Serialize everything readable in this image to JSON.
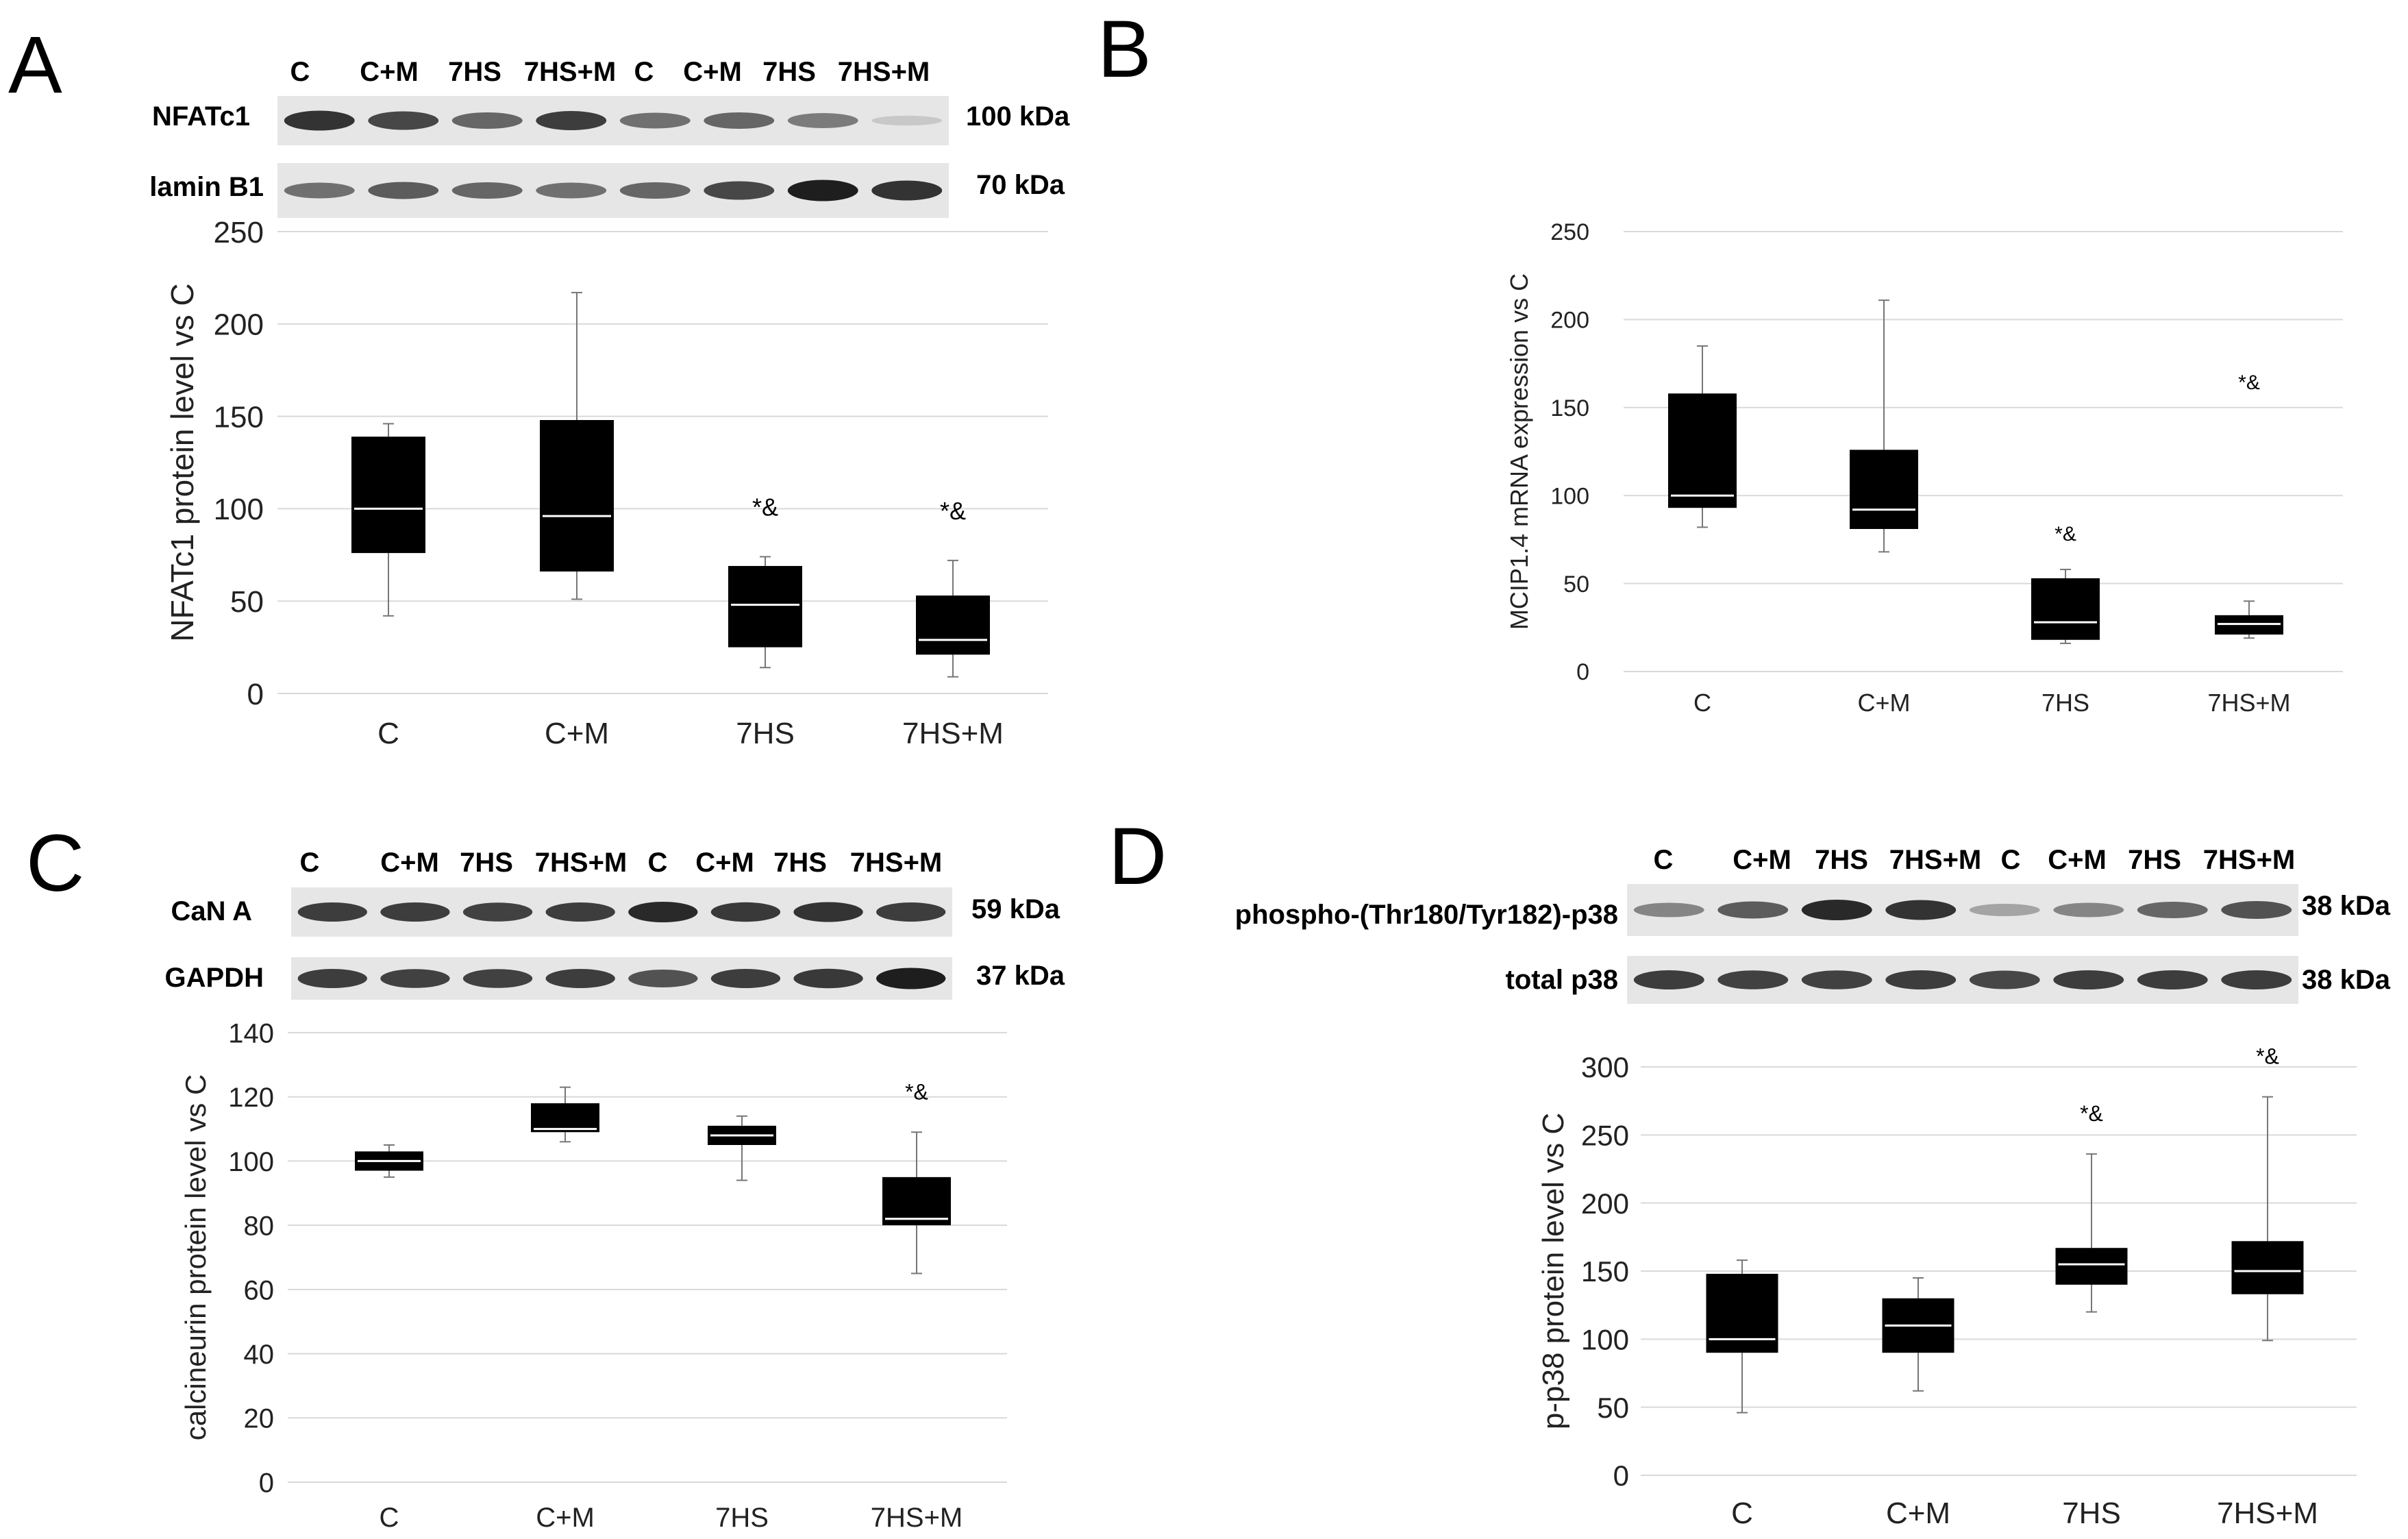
{
  "figure": {
    "panels": {
      "A": {
        "letter": "A",
        "blot": {
          "lane_labels": [
            "C",
            "C+M",
            "7HS",
            "7HS+M",
            "C",
            "C+M",
            "7HS",
            "7HS+M"
          ],
          "rows": [
            {
              "name": "NFATc1",
              "kda": "100 kDa",
              "lane_intensity": [
                0.85,
                0.75,
                0.6,
                0.8,
                0.55,
                0.6,
                0.5,
                0.12
              ]
            },
            {
              "name": "lamin B1",
              "kda": "70 kDa",
              "lane_intensity": [
                0.55,
                0.65,
                0.6,
                0.55,
                0.6,
                0.75,
                0.95,
                0.85
              ]
            }
          ]
        }
      },
      "B": {
        "letter": "B"
      },
      "C": {
        "letter": "C",
        "blot": {
          "lane_labels": [
            "C",
            "C+M",
            "7HS",
            "7HS+M",
            "C",
            "C+M",
            "7HS",
            "7HS+M"
          ],
          "rows": [
            {
              "name": "CaN A",
              "kda": "59 kDa",
              "lane_intensity": [
                0.8,
                0.8,
                0.78,
                0.8,
                0.9,
                0.82,
                0.85,
                0.8
              ]
            },
            {
              "name": "GAPDH",
              "kda": "37 kDa",
              "lane_intensity": [
                0.8,
                0.78,
                0.78,
                0.8,
                0.7,
                0.8,
                0.82,
                0.95
              ]
            }
          ]
        }
      },
      "D": {
        "letter": "D",
        "blot": {
          "lane_labels": [
            "C",
            "C+M",
            "7HS",
            "7HS+M",
            "C",
            "C+M",
            "7HS",
            "7HS+M"
          ],
          "rows": [
            {
              "name": "phospho-(Thr180/Tyr182)-p38",
              "kda": "38 kDa",
              "lane_intensity": [
                0.45,
                0.65,
                0.9,
                0.85,
                0.3,
                0.45,
                0.6,
                0.7
              ]
            },
            {
              "name": "total p38",
              "kda": "38 kDa",
              "lane_intensity": [
                0.8,
                0.78,
                0.78,
                0.8,
                0.75,
                0.8,
                0.8,
                0.8
              ]
            }
          ]
        }
      }
    }
  },
  "chart_data": [
    {
      "panel": "A",
      "type": "box",
      "categories": [
        "C",
        "C+M",
        "7HS",
        "7HS+M"
      ],
      "ylabel": "NFATc1 protein level vs C",
      "ylim": [
        0,
        250
      ],
      "yticks": [
        0,
        50,
        100,
        150,
        200,
        250
      ],
      "boxes": [
        {
          "min": 42,
          "q1": 76,
          "median": 100,
          "q3": 139,
          "max": 146,
          "annotation": ""
        },
        {
          "min": 51,
          "q1": 66,
          "median": 96,
          "q3": 148,
          "max": 217,
          "annotation": ""
        },
        {
          "min": 14,
          "q1": 25,
          "median": 48,
          "q3": 69,
          "max": 74,
          "annotation": "*&"
        },
        {
          "min": 9,
          "q1": 21,
          "median": 29,
          "q3": 53,
          "max": 72,
          "annotation": "*&"
        }
      ]
    },
    {
      "panel": "B",
      "type": "box",
      "categories": [
        "C",
        "C+M",
        "7HS",
        "7HS+M"
      ],
      "ylabel": "MCIP1.4 mRNA expression vs C",
      "ylim": [
        0,
        250
      ],
      "yticks": [
        0,
        50,
        100,
        150,
        200,
        250
      ],
      "boxes": [
        {
          "min": 82,
          "q1": 93,
          "median": 100,
          "q3": 158,
          "max": 185,
          "annotation": ""
        },
        {
          "min": 68,
          "q1": 81,
          "median": 92,
          "q3": 126,
          "max": 211,
          "annotation": ""
        },
        {
          "min": 16,
          "q1": 18,
          "median": 28,
          "q3": 53,
          "max": 58,
          "annotation": "*&"
        },
        {
          "min": 19,
          "q1": 21,
          "median": 27,
          "q3": 32,
          "max": 40,
          "annotation": "*&"
        }
      ],
      "annotation_offsets": [
        0,
        0,
        0,
        104
      ]
    },
    {
      "panel": "C",
      "type": "box",
      "categories": [
        "C",
        "C+M",
        "7HS",
        "7HS+M"
      ],
      "ylabel": "calcineurin protein level vs  C",
      "ylim": [
        0,
        140
      ],
      "yticks": [
        0,
        20,
        40,
        60,
        80,
        100,
        120,
        140
      ],
      "boxes": [
        {
          "min": 95,
          "q1": 97,
          "median": 100,
          "q3": 103,
          "max": 105,
          "annotation": ""
        },
        {
          "min": 106,
          "q1": 109,
          "median": 110,
          "q3": 118,
          "max": 123,
          "annotation": ""
        },
        {
          "min": 94,
          "q1": 105,
          "median": 108,
          "q3": 111,
          "max": 114,
          "annotation": ""
        },
        {
          "min": 65,
          "q1": 80,
          "median": 82,
          "q3": 95,
          "max": 109,
          "annotation": "*&"
        }
      ]
    },
    {
      "panel": "D",
      "type": "box",
      "categories": [
        "C",
        "C+M",
        "7HS",
        "7HS+M"
      ],
      "ylabel": "p-p38 protein level vs C",
      "ylim": [
        0,
        300
      ],
      "yticks": [
        0,
        50,
        100,
        150,
        200,
        250,
        300
      ],
      "boxes": [
        {
          "min": 46,
          "q1": 90,
          "median": 100,
          "q3": 148,
          "max": 158,
          "annotation": ""
        },
        {
          "min": 62,
          "q1": 90,
          "median": 110,
          "q3": 130,
          "max": 145,
          "annotation": ""
        },
        {
          "min": 120,
          "q1": 140,
          "median": 155,
          "q3": 167,
          "max": 236,
          "annotation": "*&"
        },
        {
          "min": 99,
          "q1": 133,
          "median": 150,
          "q3": 172,
          "max": 278,
          "annotation": "*&"
        }
      ]
    }
  ]
}
